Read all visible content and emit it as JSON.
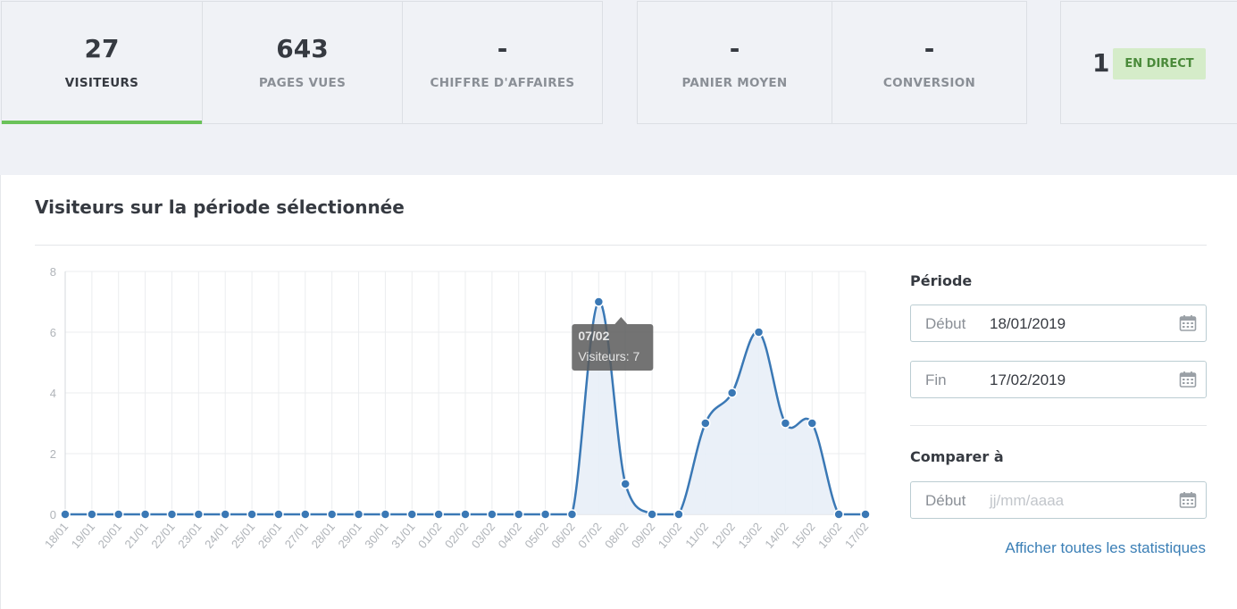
{
  "kpis_group1": [
    {
      "value": "27",
      "label": "VISITEURS",
      "active": true
    },
    {
      "value": "643",
      "label": "PAGES VUES",
      "active": false
    },
    {
      "value": "-",
      "label": "CHIFFRE D'AFFAIRES",
      "active": false
    }
  ],
  "kpis_group2": [
    {
      "value": "-",
      "label": "PANIER MOYEN"
    },
    {
      "value": "-",
      "label": "CONVERSION"
    }
  ],
  "live": {
    "count": "1",
    "badge": "EN DIRECT"
  },
  "colors": {
    "accent_green": "#6ac259",
    "badge_bg": "#d5ecc9",
    "badge_text": "#4a8a3a",
    "line": "#3a78b5",
    "fill": "#e8eef7",
    "link": "#3b7fb6"
  },
  "panel": {
    "title": "Visiteurs sur la période sélectionnée"
  },
  "tooltip": {
    "date": "07/02",
    "text": "Visiteurs: 7"
  },
  "chart_data": {
    "type": "area",
    "title": "Visiteurs sur la période sélectionnée",
    "x": [
      "18/01",
      "19/01",
      "20/01",
      "21/01",
      "22/01",
      "23/01",
      "24/01",
      "25/01",
      "26/01",
      "27/01",
      "28/01",
      "29/01",
      "30/01",
      "31/01",
      "01/02",
      "02/02",
      "03/02",
      "04/02",
      "05/02",
      "06/02",
      "07/02",
      "08/02",
      "09/02",
      "10/02",
      "11/02",
      "12/02",
      "13/02",
      "14/02",
      "15/02",
      "16/02",
      "17/02"
    ],
    "series": [
      {
        "name": "Visiteurs",
        "values": [
          0,
          0,
          0,
          0,
          0,
          0,
          0,
          0,
          0,
          0,
          0,
          0,
          0,
          0,
          0,
          0,
          0,
          0,
          0,
          0,
          7,
          1,
          0,
          0,
          3,
          4,
          6,
          3,
          3,
          0,
          0
        ]
      }
    ],
    "ylim": [
      0,
      8
    ],
    "yticks": [
      0,
      2,
      4,
      6,
      8
    ],
    "grid": true
  },
  "sidebar": {
    "period_label": "Période",
    "start_label": "Début",
    "start_value": "18/01/2019",
    "end_label": "Fin",
    "end_value": "17/02/2019",
    "compare_label": "Comparer à",
    "compare_start_label": "Début",
    "compare_placeholder": "jj/mm/aaaa",
    "link_text": "Afficher toutes les statistiques"
  }
}
